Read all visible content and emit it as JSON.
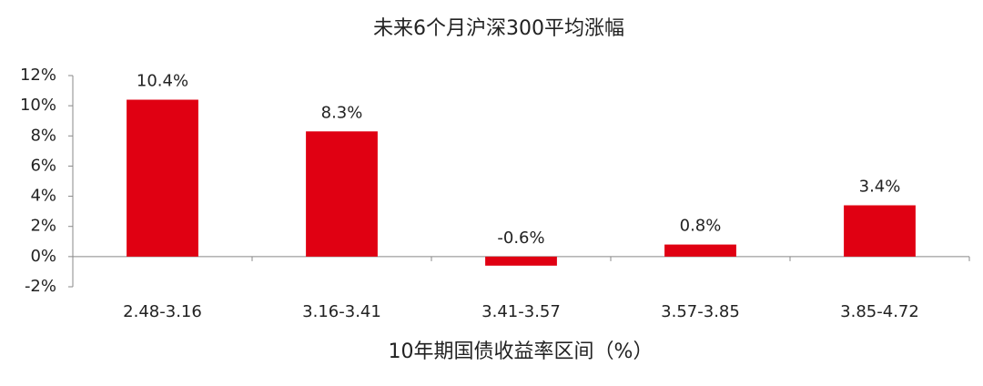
{
  "chart_data": {
    "type": "bar",
    "title": "未来6个月沪深300平均涨幅",
    "x_label": "10年期国债收益率区间（%）",
    "categories": [
      "2.48-3.16",
      "3.16-3.41",
      "3.41-3.57",
      "3.57-3.85",
      "3.85-4.72"
    ],
    "values": [
      10.4,
      8.3,
      -0.6,
      0.8,
      3.4
    ],
    "value_labels": [
      "10.4%",
      "8.3%",
      "-0.6%",
      "0.8%",
      "3.4%"
    ],
    "color": "#e00012",
    "ylim": [
      -2,
      12
    ],
    "yticks": [
      {
        "value": -2,
        "label": "-2%"
      },
      {
        "value": 0,
        "label": "0%"
      },
      {
        "value": 2,
        "label": "2%"
      },
      {
        "value": 4,
        "label": "4%"
      },
      {
        "value": 6,
        "label": "6%"
      },
      {
        "value": 8,
        "label": "8%"
      },
      {
        "value": 10,
        "label": "10%"
      },
      {
        "value": 12,
        "label": "12%"
      }
    ],
    "grid": false
  }
}
